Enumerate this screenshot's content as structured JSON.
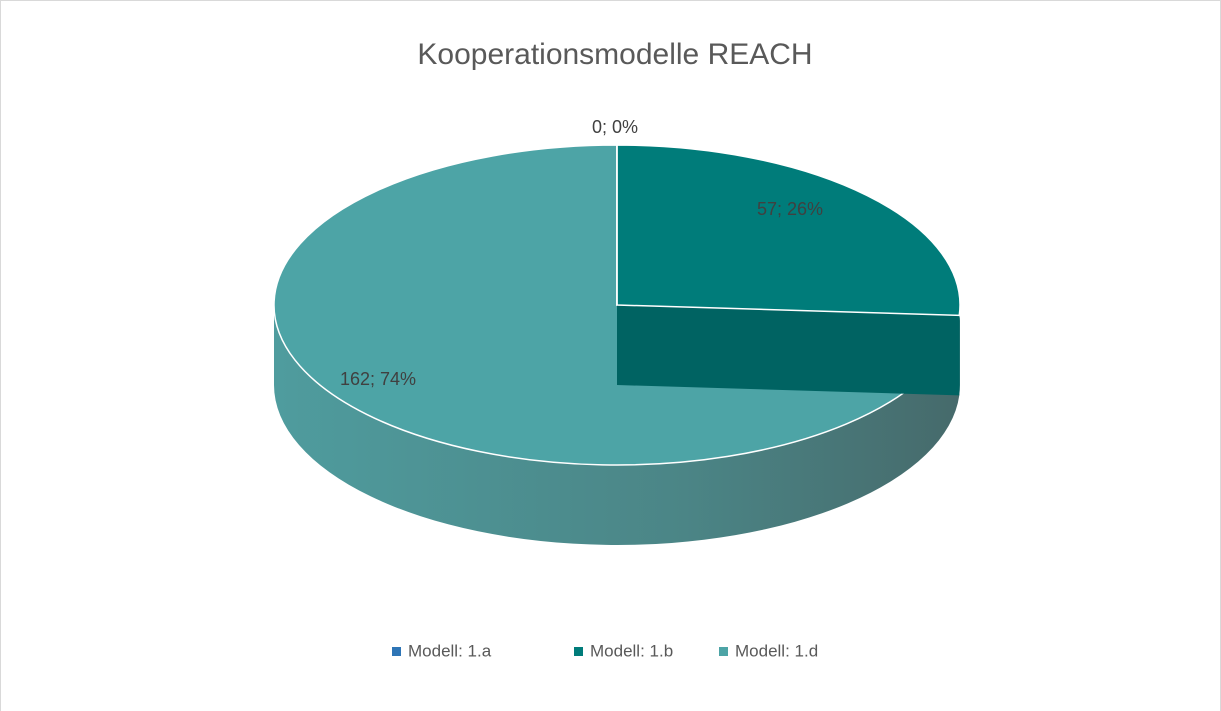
{
  "chart_data": {
    "type": "pie3d",
    "title": "Kooperationsmodelle REACH",
    "categories": [
      "Modell: 1.a",
      "Modell: 1.b",
      "Modell: 1.d"
    ],
    "values": [
      0,
      57,
      162
    ],
    "value_labels": [
      "0; 0%",
      "57; 26%",
      "162; 74%"
    ],
    "colors": [
      "#2e75b6",
      "#007c7a",
      "#4da4a6"
    ],
    "legend": "bottom"
  }
}
